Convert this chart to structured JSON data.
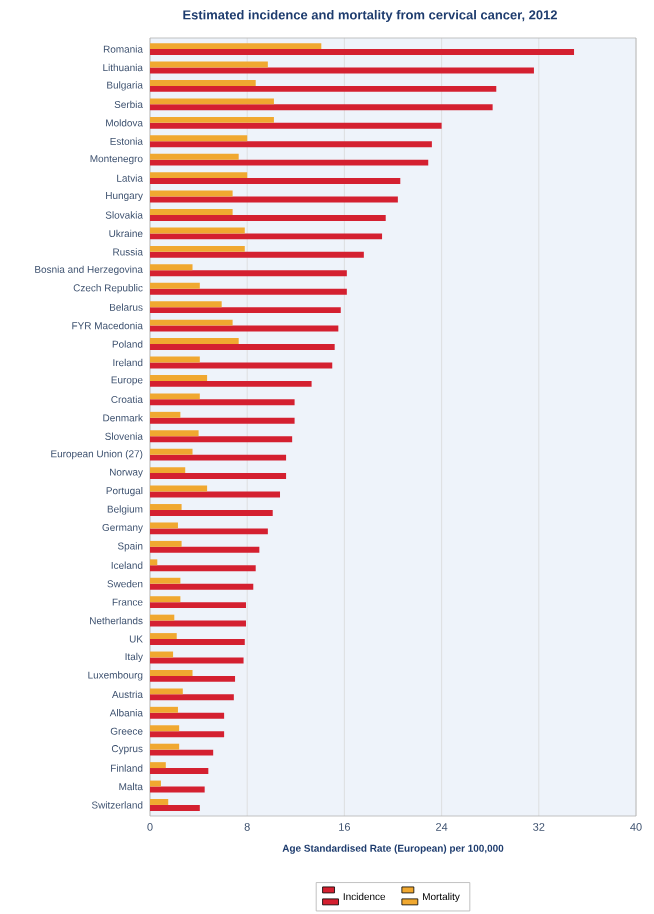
{
  "chart_data": {
    "type": "bar",
    "orientation": "horizontal",
    "title": "Estimated incidence and mortality from cervical cancer, 2012",
    "xlabel": "Age Standardised Rate (European) per 100,000",
    "categories": [
      "Romania",
      "Lithuania",
      "Bulgaria",
      "Serbia",
      "Moldova",
      "Estonia",
      "Montenegro",
      "Latvia",
      "Hungary",
      "Slovakia",
      "Ukraine",
      "Russia",
      "Bosnia and Herzegovina",
      "Czech Republic",
      "Belarus",
      "FYR Macedonia",
      "Poland",
      "Ireland",
      "Europe",
      "Croatia",
      "Denmark",
      "Slovenia",
      "European Union (27)",
      "Norway",
      "Portugal",
      "Belgium",
      "Germany",
      "Spain",
      "Iceland",
      "Sweden",
      "France",
      "Netherlands",
      "UK",
      "Italy",
      "Luxembourg",
      "Austria",
      "Albania",
      "Greece",
      "Cyprus",
      "Finland",
      "Malta",
      "Switzerland"
    ],
    "series": [
      {
        "name": "Incidence",
        "color": "#d42030",
        "values": [
          34.9,
          31.6,
          28.5,
          28.2,
          24.0,
          23.2,
          22.9,
          20.6,
          20.4,
          19.4,
          19.1,
          17.6,
          16.2,
          16.2,
          15.7,
          15.5,
          15.2,
          15.0,
          13.3,
          11.9,
          11.9,
          11.7,
          11.2,
          11.2,
          10.7,
          10.1,
          9.7,
          9.0,
          8.7,
          8.5,
          7.9,
          7.9,
          7.8,
          7.7,
          7.0,
          6.9,
          6.1,
          6.1,
          5.2,
          4.8,
          4.5,
          4.1
        ]
      },
      {
        "name": "Mortality",
        "color": "#f0a830",
        "values": [
          14.1,
          9.7,
          8.7,
          10.2,
          10.2,
          8.0,
          7.3,
          8.0,
          6.8,
          6.8,
          7.8,
          7.8,
          3.5,
          4.1,
          5.9,
          6.8,
          7.3,
          4.1,
          4.7,
          4.1,
          2.5,
          4.0,
          3.5,
          2.9,
          4.7,
          2.6,
          2.3,
          2.6,
          0.6,
          2.5,
          2.5,
          2.0,
          2.2,
          1.9,
          3.5,
          2.7,
          2.3,
          2.4,
          2.4,
          1.3,
          0.9,
          1.5
        ]
      }
    ],
    "xlim": [
      0,
      40
    ],
    "xticks": [
      0,
      8,
      16,
      24,
      32,
      40
    ],
    "grid": "x",
    "legend": "bottom"
  }
}
